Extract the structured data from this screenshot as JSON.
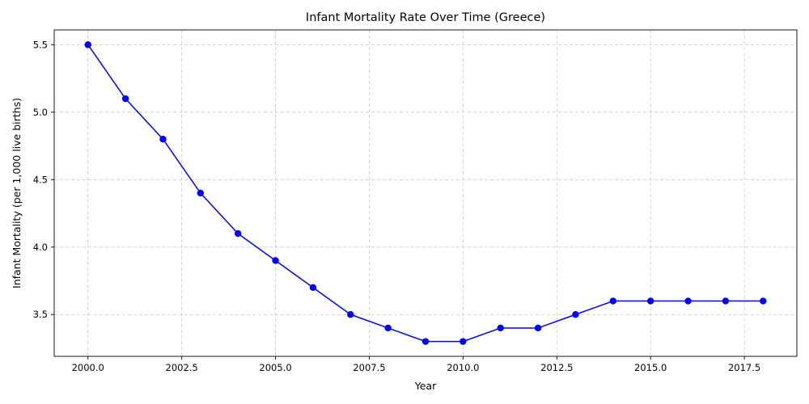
{
  "chart_data": {
    "type": "line",
    "title": "Infant Mortality Rate Over Time (Greece)",
    "xlabel": "Year",
    "ylabel": "Infant Mortality (per 1,000 live births)",
    "xlim": [
      1999.1,
      2018.9
    ],
    "ylim": [
      3.19,
      5.61
    ],
    "x_ticks": [
      2000.0,
      2002.5,
      2005.0,
      2007.5,
      2010.0,
      2012.5,
      2015.0,
      2017.5
    ],
    "x_tick_labels": [
      "2000.0",
      "2002.5",
      "2005.0",
      "2007.5",
      "2010.0",
      "2012.5",
      "2015.0",
      "2017.5"
    ],
    "y_ticks": [
      3.5,
      4.0,
      4.5,
      5.0,
      5.5
    ],
    "y_tick_labels": [
      "3.5",
      "4.0",
      "4.5",
      "5.0",
      "5.5"
    ],
    "grid": true,
    "legend": "none",
    "series": [
      {
        "color": "#0000ff",
        "marker": "circle",
        "x": [
          2000,
          2001,
          2002,
          2003,
          2004,
          2005,
          2006,
          2007,
          2008,
          2009,
          2010,
          2011,
          2012,
          2013,
          2014,
          2015,
          2016,
          2017,
          2018
        ],
        "y": [
          5.5,
          5.1,
          4.8,
          4.4,
          4.1,
          3.9,
          3.7,
          3.5,
          3.4,
          3.3,
          3.3,
          3.4,
          3.4,
          3.5,
          3.6,
          3.6,
          3.6,
          3.6,
          3.6
        ]
      }
    ]
  }
}
